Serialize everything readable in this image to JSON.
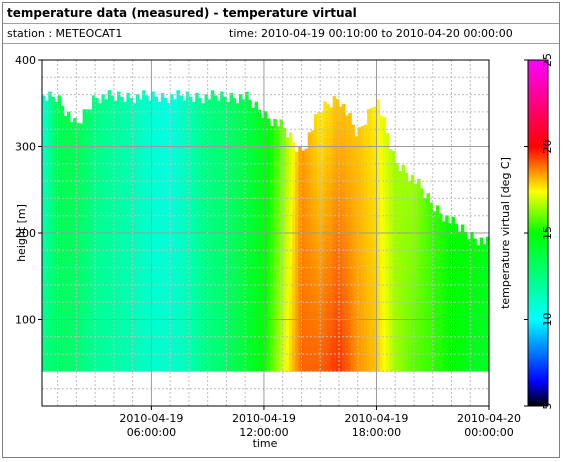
{
  "header": {
    "title": "temperature data (measured) - temperature virtual",
    "station": "station : METEOCAT1",
    "time": "time: 2010-04-19 00:10:00 to 2010-04-20 00:00:00"
  },
  "chart_data": {
    "type": "heatmap",
    "xlabel": "time",
    "ylabel": "height [m]",
    "colorbar_label": "temperature virtual [deg C]",
    "x_ticks": [
      {
        "line1": "2010-04-19",
        "line2": "06:00:00",
        "hour": 6
      },
      {
        "line1": "2010-04-19",
        "line2": "12:00:00",
        "hour": 12
      },
      {
        "line1": "2010-04-19",
        "line2": "18:00:00",
        "hour": 18
      },
      {
        "line1": "2010-04-20",
        "line2": "00:00:00",
        "hour": 24
      }
    ],
    "xlim_hours": [
      0.1667,
      24
    ],
    "y_ticks": [
      100,
      200,
      300,
      400
    ],
    "ylim": [
      0,
      400
    ],
    "colorbar_ticks": [
      5,
      10,
      15,
      20,
      25
    ],
    "colorbar_range": [
      5,
      25
    ],
    "data_bottom_height_m": 40,
    "columns": [
      {
        "t": 0.17,
        "top": 365,
        "temp_surface": 12.5,
        "temp_top": 10.5
      },
      {
        "t": 1.0,
        "top": 365,
        "temp_surface": 13.0,
        "temp_top": 13.5
      },
      {
        "t": 2.0,
        "top": 330,
        "temp_surface": 12.8,
        "temp_top": 13.5
      },
      {
        "t": 3.0,
        "top": 365,
        "temp_surface": 12.0,
        "temp_top": 12.5
      },
      {
        "t": 4.0,
        "top": 365,
        "temp_surface": 11.8,
        "temp_top": 12.0
      },
      {
        "t": 5.0,
        "top": 365,
        "temp_surface": 11.5,
        "temp_top": 11.5
      },
      {
        "t": 6.0,
        "top": 365,
        "temp_surface": 11.0,
        "temp_top": 10.8
      },
      {
        "t": 7.0,
        "top": 365,
        "temp_surface": 11.0,
        "temp_top": 10.5
      },
      {
        "t": 8.0,
        "top": 365,
        "temp_surface": 11.5,
        "temp_top": 11.5
      },
      {
        "t": 9.0,
        "top": 365,
        "temp_surface": 12.5,
        "temp_top": 12.5
      },
      {
        "t": 10.0,
        "top": 365,
        "temp_surface": 13.0,
        "temp_top": 12.8
      },
      {
        "t": 11.0,
        "top": 365,
        "temp_surface": 14.0,
        "temp_top": 13.5
      },
      {
        "t": 12.0,
        "top": 345,
        "temp_surface": 15.0,
        "temp_top": 14.5
      },
      {
        "t": 13.0,
        "top": 330,
        "temp_surface": 17.0,
        "temp_top": 16.0
      },
      {
        "t": 14.0,
        "top": 300,
        "temp_surface": 19.0,
        "temp_top": 18.5
      },
      {
        "t": 15.0,
        "top": 350,
        "temp_surface": 19.0,
        "temp_top": 17.5
      },
      {
        "t": 16.0,
        "top": 365,
        "temp_surface": 19.5,
        "temp_top": 18.0
      },
      {
        "t": 17.0,
        "top": 320,
        "temp_surface": 18.5,
        "temp_top": 18.0
      },
      {
        "t": 18.0,
        "top": 365,
        "temp_surface": 18.0,
        "temp_top": 17.5
      },
      {
        "t": 19.0,
        "top": 290,
        "temp_surface": 16.5,
        "temp_top": 16.5
      },
      {
        "t": 20.0,
        "top": 270,
        "temp_surface": 15.8,
        "temp_top": 16.5
      },
      {
        "t": 21.0,
        "top": 240,
        "temp_surface": 15.5,
        "temp_top": 15.5
      },
      {
        "t": 22.0,
        "top": 220,
        "temp_surface": 15.0,
        "temp_top": 15.0
      },
      {
        "t": 23.0,
        "top": 205,
        "temp_surface": 14.5,
        "temp_top": 15.0
      },
      {
        "t": 24.0,
        "top": 195,
        "temp_surface": 14.2,
        "temp_top": 14.5
      }
    ]
  }
}
